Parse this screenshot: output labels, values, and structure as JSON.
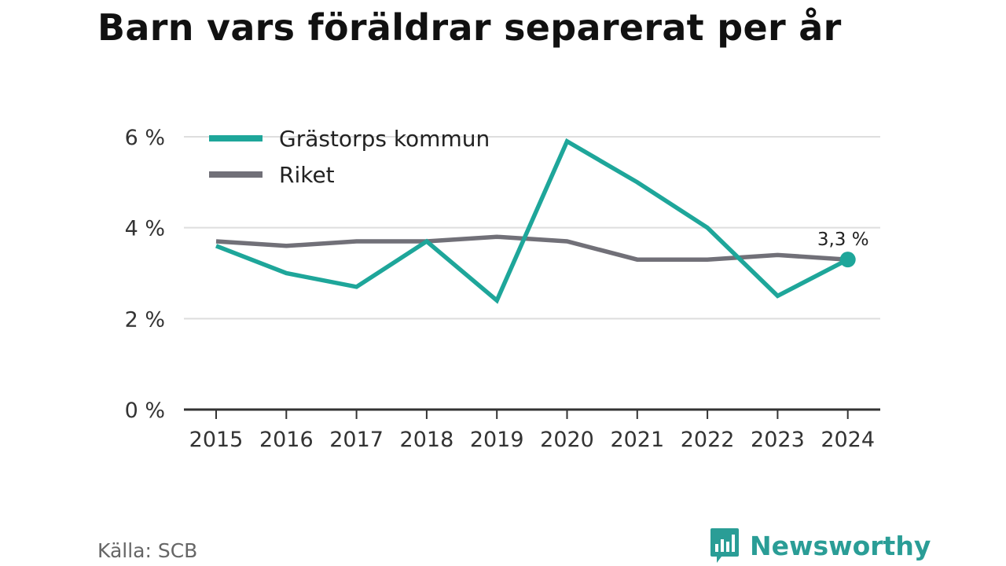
{
  "title": "Barn vars föräldrar separerat per år",
  "source": "Källa: SCB",
  "brand": {
    "name": "Newsworthy",
    "icon": "bar-chart-speech-bubble-icon",
    "color": "#2a9d96"
  },
  "chart_data": {
    "type": "line",
    "x": [
      "2015",
      "2016",
      "2017",
      "2018",
      "2019",
      "2020",
      "2021",
      "2022",
      "2023",
      "2024"
    ],
    "ylim": [
      0,
      6
    ],
    "yticks": [
      0,
      2,
      4,
      6
    ],
    "ytick_labels": [
      "0 %",
      "2 %",
      "4 %",
      "6 %"
    ],
    "grid": true,
    "legend_position": "top-left",
    "series": [
      {
        "name": "Grästorps kommun",
        "color": "#1ea69a",
        "values": [
          3.6,
          3.0,
          2.7,
          3.7,
          2.4,
          5.9,
          5.0,
          4.0,
          2.5,
          3.3
        ]
      },
      {
        "name": "Riket",
        "color": "#717078",
        "values": [
          3.7,
          3.6,
          3.7,
          3.7,
          3.8,
          3.7,
          3.3,
          3.3,
          3.4,
          3.3
        ]
      }
    ],
    "annotations": [
      {
        "series": 0,
        "index": 9,
        "label": "3,3 %"
      }
    ]
  }
}
